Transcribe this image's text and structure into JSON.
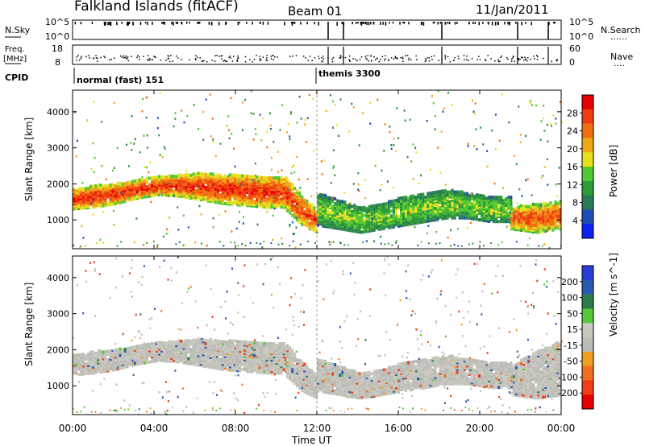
{
  "header": {
    "site": "Falkland Islands (fitACF)",
    "beam": "Beam 01",
    "date": "11/Jan/2011"
  },
  "panel_labels": {
    "nsky": "N.Sky",
    "nsearch": "N.Search",
    "freq": "Freq.",
    "mhz": "[MHz]",
    "nave": "Nave",
    "cpid": "CPID",
    "dots": "......",
    "dots_short": "...."
  },
  "nsky_ticks": {
    "top": "10^5",
    "bottom": "10^0",
    "right_top": "10^5",
    "right_bottom": "10^0"
  },
  "freq_ticks": {
    "left_top": "18",
    "left_bottom": "8",
    "right_top": "60",
    "right_bottom": "0"
  },
  "cpid_modes": [
    {
      "label": "normal (fast) 151",
      "start_hour": 0
    },
    {
      "label": "themis 3300",
      "start_hour": 12
    }
  ],
  "colors": {
    "power_scale": [
      "#0b23f0",
      "#1e4db8",
      "#2a7a5a",
      "#2e9a38",
      "#52c832",
      "#e6e020",
      "#f0a818",
      "#f07010",
      "#f03a10",
      "#e60000"
    ],
    "velocity_scale": [
      "#2a3cd6",
      "#2a5ab0",
      "#2e7a48",
      "#56c83a",
      "#c8c8c0",
      "#bcbcb6",
      "#f0a020",
      "#f07020",
      "#f03c18",
      "#e60000"
    ],
    "ground_scatter": "#c0c0b8"
  },
  "chart_data": [
    {
      "type": "heatmap",
      "title": "Power",
      "xlabel": "Time UT",
      "ylabel": "Slant Range [km]",
      "xlim_hours": [
        0,
        24
      ],
      "ylim_km": [
        200,
        4600
      ],
      "x_ticks": [
        "00:00",
        "04:00",
        "08:00",
        "12:00",
        "16:00",
        "20:00",
        "00:00"
      ],
      "x_tick_hours": [
        0,
        4,
        8,
        12,
        16,
        20,
        24
      ],
      "y_ticks": [
        "1000",
        "2000",
        "3000",
        "4000"
      ],
      "y_tick_values": [
        1000,
        2000,
        3000,
        4000
      ],
      "colorbar": {
        "label": "Power [dB]",
        "ticks": [
          "4",
          "8",
          "12",
          "16",
          "20",
          "24",
          "28"
        ],
        "tick_values": [
          4,
          8,
          12,
          16,
          20,
          24,
          28
        ],
        "range": [
          0,
          30
        ]
      },
      "bands": [
        {
          "t0": 0.0,
          "t1": 10.5,
          "r_low": [
            1350,
            1400,
            1500,
            1650,
            1750,
            1700,
            1600,
            1500,
            1450,
            1400,
            1400
          ],
          "r_high": [
            1900,
            2000,
            2050,
            2150,
            2250,
            2300,
            2350,
            2300,
            2300,
            2250,
            2250
          ],
          "level": 26
        },
        {
          "t0": 10.5,
          "t1": 12.0,
          "r_low": [
            1300,
            900,
            700
          ],
          "r_high": [
            2200,
            1700,
            1300
          ],
          "level": 25
        },
        {
          "t0": 12.0,
          "t1": 21.5,
          "r_low": [
            900,
            800,
            700,
            800,
            900,
            1000,
            1100,
            1100,
            1000,
            1000
          ],
          "r_high": [
            1800,
            1600,
            1400,
            1500,
            1700,
            1800,
            1900,
            1800,
            1700,
            1700
          ],
          "level": 14
        },
        {
          "t0": 21.5,
          "t1": 24.0,
          "r_low": [
            800,
            700,
            800
          ],
          "r_high": [
            1400,
            1500,
            1600
          ],
          "level": 24
        }
      ]
    },
    {
      "type": "heatmap",
      "title": "Velocity",
      "xlabel": "Time UT",
      "ylabel": "Slant Range [km]",
      "xlim_hours": [
        0,
        24
      ],
      "ylim_km": [
        200,
        4600
      ],
      "x_ticks": [
        "00:00",
        "04:00",
        "08:00",
        "12:00",
        "16:00",
        "20:00",
        "00:00"
      ],
      "x_tick_hours": [
        0,
        4,
        8,
        12,
        16,
        20,
        24
      ],
      "y_ticks": [
        "1000",
        "2000",
        "3000",
        "4000"
      ],
      "y_tick_values": [
        1000,
        2000,
        3000,
        4000
      ],
      "colorbar": {
        "label": "Velocity [m s^-1]",
        "ticks": [
          "200",
          "100",
          "50",
          "15",
          "-15",
          "-50",
          "-100",
          "-200"
        ],
        "tick_values": [
          200,
          100,
          50,
          15,
          -15,
          -50,
          -100,
          -200
        ],
        "range": [
          -250,
          250
        ]
      },
      "bands": [
        {
          "t0": 0.0,
          "t1": 10.5,
          "r_low": [
            1350,
            1400,
            1500,
            1650,
            1750,
            1700,
            1600,
            1500,
            1450,
            1400,
            1400
          ],
          "r_high": [
            1900,
            2000,
            2050,
            2150,
            2250,
            2300,
            2350,
            2300,
            2300,
            2250,
            2250
          ],
          "level": 0
        },
        {
          "t0": 10.5,
          "t1": 12.0,
          "r_low": [
            1300,
            900,
            700
          ],
          "r_high": [
            2200,
            1700,
            1300
          ],
          "level": 0
        },
        {
          "t0": 12.0,
          "t1": 21.5,
          "r_low": [
            900,
            800,
            700,
            800,
            900,
            1000,
            1100,
            1100,
            1000,
            1000
          ],
          "r_high": [
            1800,
            1600,
            1400,
            1500,
            1700,
            1800,
            1900,
            1800,
            1700,
            1700
          ],
          "level": 0
        },
        {
          "t0": 21.5,
          "t1": 24.0,
          "r_low": [
            800,
            700,
            800
          ],
          "r_high": [
            1600,
            2000,
            2300
          ],
          "level": 0
        }
      ]
    }
  ]
}
